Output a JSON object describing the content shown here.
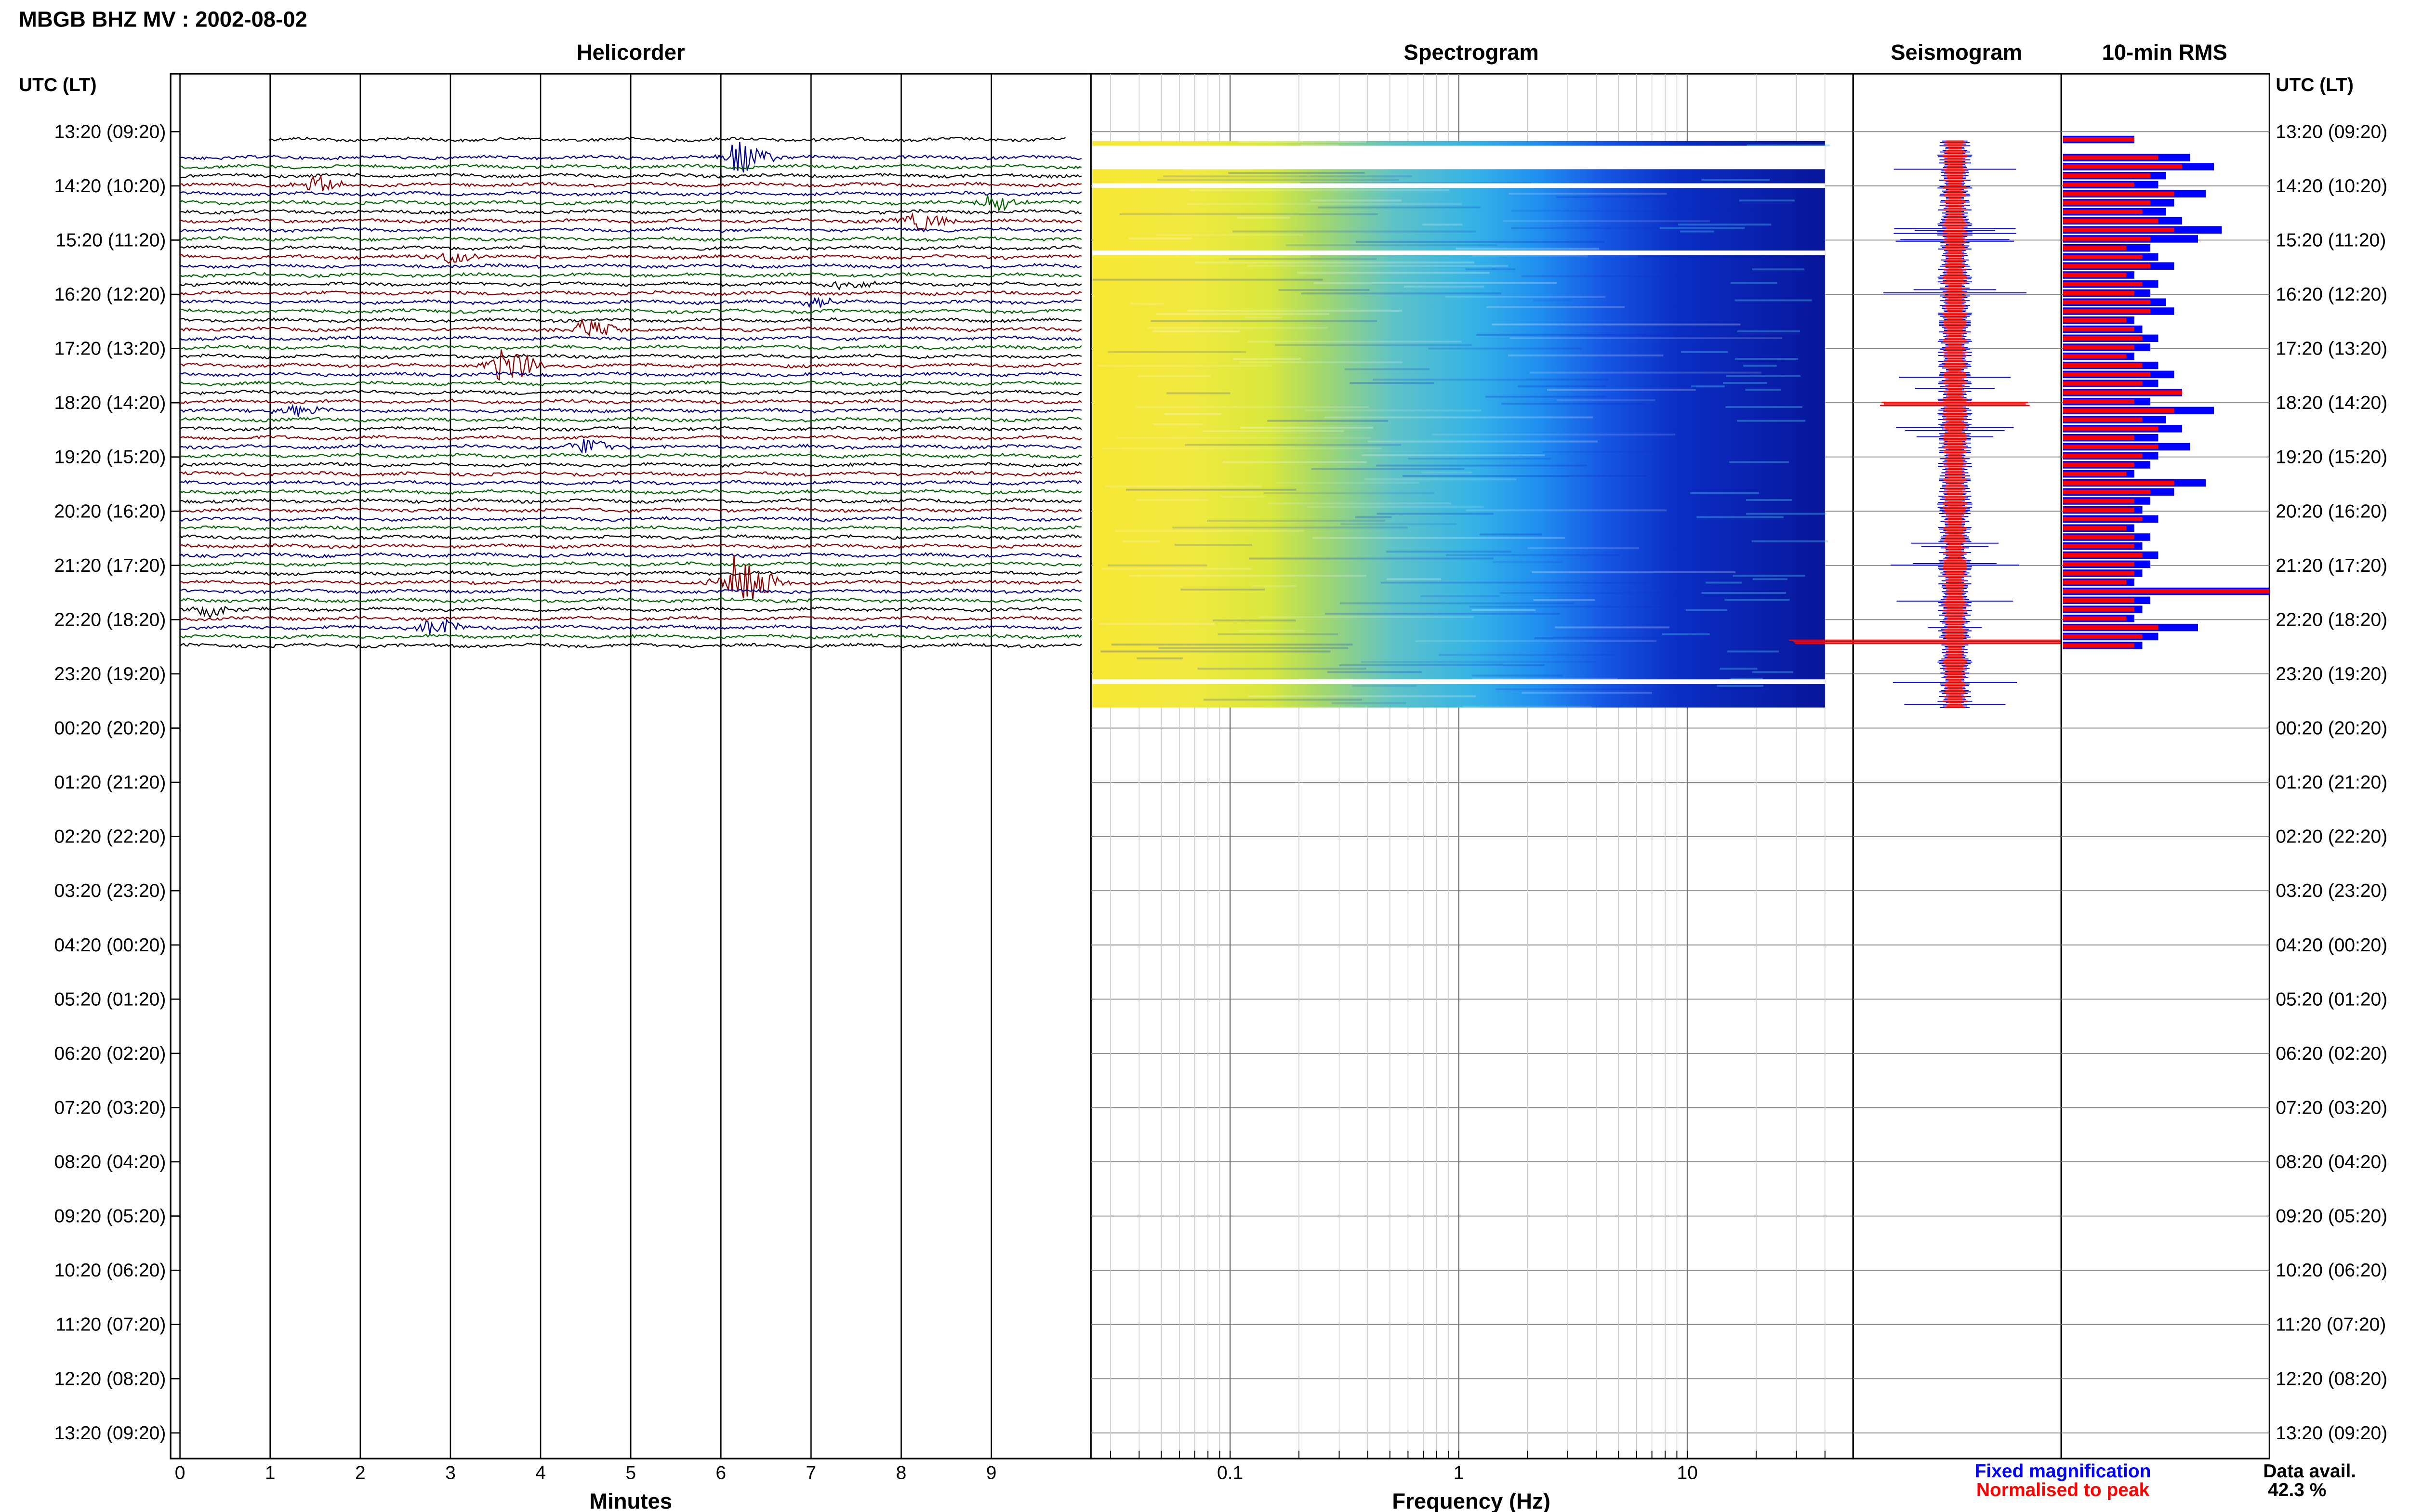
{
  "title": "MBGB BHZ MV : 2002-08-02",
  "time_axis_label": "UTC (LT)",
  "time_labels": [
    "13:20 (09:20)",
    "14:20 (10:20)",
    "15:20 (11:20)",
    "16:20 (12:20)",
    "17:20 (13:20)",
    "18:20 (14:20)",
    "19:20 (15:20)",
    "20:20 (16:20)",
    "21:20 (17:20)",
    "22:20 (18:20)",
    "23:20 (19:20)",
    "00:20 (20:20)",
    "01:20 (21:20)",
    "02:20 (22:20)",
    "03:20 (23:20)",
    "04:20 (00:20)",
    "05:20 (01:20)",
    "06:20 (02:20)",
    "07:20 (03:20)",
    "08:20 (04:20)",
    "09:20 (05:20)",
    "10:20 (06:20)",
    "11:20 (07:20)",
    "12:20 (08:20)",
    "13:20 (09:20)"
  ],
  "colors": {
    "black": "#000000",
    "red": "#8b0000",
    "blue": "#00008b",
    "green": "#006400",
    "fixed": "#0000ff",
    "normalised": "#ff0000"
  },
  "chart_data": [
    {
      "type": "line",
      "title": "Helicorder",
      "xlabel": "Minutes",
      "xlim": [
        -0.1,
        10
      ],
      "x_ticks": [
        "0",
        "1",
        "2",
        "3",
        "4",
        "5",
        "6",
        "7",
        "8",
        "9"
      ],
      "trace_color_cycle": [
        "black",
        "red",
        "blue",
        "green"
      ],
      "trace_count": 57,
      "events": [
        {
          "trace": 2,
          "minute": 6.2,
          "amplitude": 3.5,
          "note": "helicorder event"
        },
        {
          "trace": 5,
          "minute": 1.5,
          "amplitude": 1.8
        },
        {
          "trace": 7,
          "minute": 9.0,
          "amplitude": 1.5
        },
        {
          "trace": 9,
          "minute": 8.2,
          "amplitude": 2.2
        },
        {
          "trace": 13,
          "minute": 3.0,
          "amplitude": 1.2
        },
        {
          "trace": 16,
          "minute": 7.3,
          "amplitude": 1.2
        },
        {
          "trace": 18,
          "minute": 7.0,
          "amplitude": 1.0
        },
        {
          "trace": 21,
          "minute": 4.5,
          "amplitude": 2.0
        },
        {
          "trace": 25,
          "minute": 3.6,
          "amplitude": 4.0
        },
        {
          "trace": 30,
          "minute": 1.2,
          "amplitude": 1.3
        },
        {
          "trace": 34,
          "minute": 4.5,
          "amplitude": 2.0
        },
        {
          "trace": 49,
          "minute": 6.2,
          "amplitude": 7.0
        },
        {
          "trace": 52,
          "minute": 0.3,
          "amplitude": 1.5
        },
        {
          "trace": 54,
          "minute": 2.8,
          "amplitude": 2.0
        }
      ]
    },
    {
      "type": "heatmap",
      "title": "Spectrogram",
      "xlabel": "Frequency (Hz)",
      "x_scale": "log",
      "xlim": [
        0.025,
        40
      ],
      "x_ticks": [
        "0.1",
        "1",
        "10"
      ],
      "data_ends_at": "23:50",
      "gaps": [
        "13:20",
        "13:50",
        "14:50",
        "15:50",
        "23:40"
      ]
    },
    {
      "type": "line",
      "title": "Seismogram",
      "series": [
        {
          "name": "Fixed magnification",
          "color": "fixed"
        },
        {
          "name": "Normalised to peak",
          "color": "normalised"
        }
      ],
      "peak_at": "23:00"
    },
    {
      "type": "bar",
      "title": "10-min RMS",
      "legend": [
        "Fixed magnification",
        "Normalised to peak"
      ],
      "rms_fixed": [
        0.45,
        0,
        0.8,
        0.95,
        0.65,
        0.6,
        0.9,
        0.7,
        0.65,
        0.75,
        1.0,
        0.85,
        0.55,
        0.6,
        0.7,
        0.45,
        0.6,
        0.55,
        0.65,
        0.7,
        0.45,
        0.5,
        0.6,
        0.55,
        0.45,
        0.6,
        0.7,
        0.6,
        0.75,
        0.55,
        0.95,
        0.65,
        0.75,
        0.6,
        0.8,
        0.6,
        0.55,
        0.45,
        0.9,
        0.7,
        0.55,
        0.5,
        0.6,
        0.45,
        0.55,
        0.5,
        0.6,
        0.55,
        0.5,
        0.45,
        1.3,
        0.55,
        0.5,
        0.45,
        0.85,
        0.6,
        0.5
      ],
      "rms_normalised": [
        0.45,
        0,
        0.6,
        0.75,
        0.55,
        0.45,
        0.7,
        0.55,
        0.5,
        0.6,
        0.7,
        0.55,
        0.4,
        0.5,
        0.55,
        0.4,
        0.5,
        0.45,
        0.55,
        0.55,
        0.4,
        0.45,
        0.5,
        0.45,
        0.4,
        0.5,
        0.55,
        0.5,
        0.75,
        0.45,
        0.7,
        0.5,
        0.6,
        0.45,
        0.6,
        0.5,
        0.45,
        0.4,
        0.7,
        0.55,
        0.45,
        0.45,
        0.5,
        0.4,
        0.45,
        0.45,
        0.5,
        0.45,
        0.45,
        0.4,
        1.3,
        0.45,
        0.45,
        0.4,
        0.6,
        0.5,
        0.45
      ]
    }
  ],
  "legend": {
    "fixed_label": "Fixed magnification",
    "normalised_label": "Normalised to peak"
  },
  "data_avail": {
    "label": "Data avail.",
    "value": "42.3 %"
  }
}
